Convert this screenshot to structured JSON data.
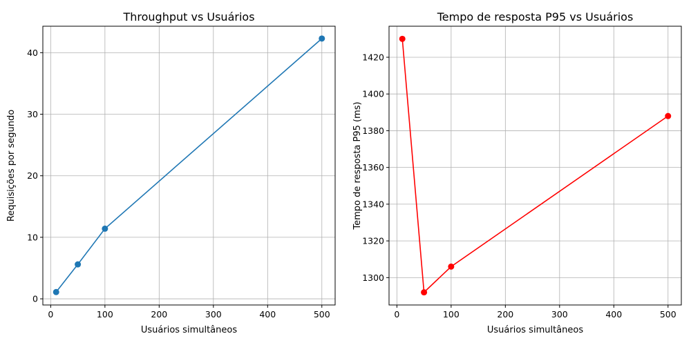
{
  "chart_data": [
    {
      "type": "line",
      "title": "Throughput vs Usuários",
      "xlabel": "Usuários simultâneos",
      "ylabel": "Requisições por segundo",
      "xlim": [
        -14.5,
        524.5
      ],
      "ylim": [
        -1.0,
        44.3
      ],
      "xticks": [
        0,
        100,
        200,
        300,
        400,
        500
      ],
      "yticks": [
        0,
        10,
        20,
        30,
        40
      ],
      "grid": true,
      "color": "#1f77b4",
      "series": [
        {
          "x": [
            10,
            50,
            100,
            500
          ],
          "y": [
            1.1,
            5.6,
            11.4,
            42.3
          ]
        }
      ]
    },
    {
      "type": "line",
      "title": "Tempo de resposta P95 vs Usuários",
      "xlabel": "Usuários simultâneos",
      "ylabel": "Tempo de resposta P95 (ms)",
      "xlim": [
        -14.5,
        524.5
      ],
      "ylim": [
        1285.1,
        1436.9
      ],
      "xticks": [
        0,
        100,
        200,
        300,
        400,
        500
      ],
      "yticks": [
        1300,
        1320,
        1340,
        1360,
        1380,
        1400,
        1420
      ],
      "grid": true,
      "color": "#ff0000",
      "series": [
        {
          "x": [
            10,
            50,
            100,
            500
          ],
          "y": [
            1430,
            1292,
            1306,
            1388
          ]
        }
      ]
    }
  ]
}
